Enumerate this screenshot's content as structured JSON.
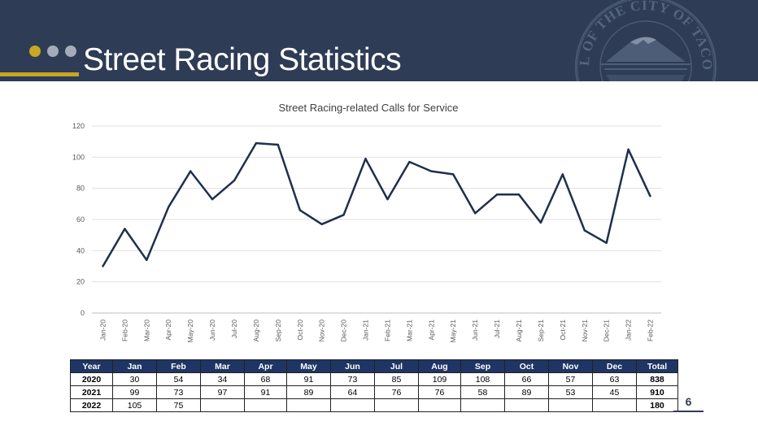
{
  "header": {
    "title": "Street Racing Statistics",
    "seal_text": "SEAL OF THE CITY OF TACOMA",
    "background_color": "#2e3c55",
    "accent_color": "#c9a623",
    "dot_color": "#a4acba"
  },
  "chart_data": {
    "type": "line",
    "title": "Street Racing-related Calls for Service",
    "xlabel": "",
    "ylabel": "",
    "ylim": [
      0,
      120
    ],
    "yticks": [
      0,
      20,
      40,
      60,
      80,
      100,
      120
    ],
    "grid": true,
    "categories": [
      "Jan-20",
      "Feb-20",
      "Mar-20",
      "Apr-20",
      "May-20",
      "Jun-20",
      "Jul-20",
      "Aug-20",
      "Sep-20",
      "Oct-20",
      "Nov-20",
      "Dec-20",
      "Jan-21",
      "Feb-21",
      "Mar-21",
      "Apr-21",
      "May-21",
      "Jun-21",
      "Jul-21",
      "Aug-21",
      "Sep-21",
      "Oct-21",
      "Nov-21",
      "Dec-21",
      "Jan-22",
      "Feb-22"
    ],
    "series": [
      {
        "values": [
          30,
          54,
          34,
          68,
          91,
          73,
          85,
          109,
          108,
          66,
          57,
          63,
          99,
          73,
          97,
          91,
          89,
          64,
          76,
          76,
          58,
          89,
          53,
          45,
          105,
          75
        ],
        "color": "#1f2f4d"
      }
    ]
  },
  "table": {
    "headers": [
      "Year",
      "Jan",
      "Feb",
      "Mar",
      "Apr",
      "May",
      "Jun",
      "Jul",
      "Aug",
      "Sep",
      "Oct",
      "Nov",
      "Dec",
      "Total"
    ],
    "rows": [
      [
        "2020",
        "30",
        "54",
        "34",
        "68",
        "91",
        "73",
        "85",
        "109",
        "108",
        "66",
        "57",
        "63",
        "838"
      ],
      [
        "2021",
        "99",
        "73",
        "97",
        "91",
        "89",
        "64",
        "76",
        "76",
        "58",
        "89",
        "53",
        "45",
        "910"
      ],
      [
        "2022",
        "105",
        "75",
        "",
        "",
        "",
        "",
        "",
        "",
        "",
        "",
        "",
        "",
        "180"
      ]
    ]
  },
  "page_number": "6"
}
